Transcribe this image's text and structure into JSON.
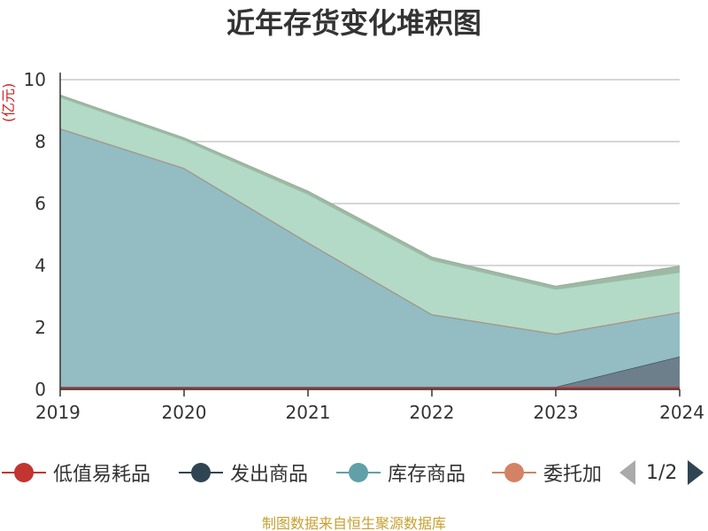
{
  "title": "近年存货变化堆积图",
  "unit_label": "(亿元)",
  "source": "制图数据来自恒生聚源数据库",
  "legend": {
    "items": [
      {
        "name": "低值易耗品",
        "color": "#c23531"
      },
      {
        "name": "发出商品",
        "color": "#2f4554"
      },
      {
        "name": "库存商品",
        "color": "#61a0a8"
      },
      {
        "name": "委托加",
        "color": "#d48265"
      }
    ],
    "pager": "1/2"
  },
  "chart_data": {
    "type": "area",
    "stacked": true,
    "title": "近年存货变化堆积图",
    "ylabel": "(亿元)",
    "ylim": [
      0,
      10
    ],
    "yticks": [
      0,
      2,
      4,
      6,
      8,
      10
    ],
    "grid": true,
    "legend_position": "bottom",
    "x": [
      "2019",
      "2020",
      "2021",
      "2022",
      "2023",
      "2024"
    ],
    "series": [
      {
        "name": "低值易耗品",
        "color": "#c23531",
        "fill": "#c23531",
        "values": [
          0.08,
          0.08,
          0.08,
          0.08,
          0.08,
          0.08
        ]
      },
      {
        "name": "发出商品",
        "color": "#2f4554",
        "fill": "#6e7f8c",
        "values": [
          0.0,
          0.0,
          0.0,
          0.0,
          0.0,
          0.98
        ]
      },
      {
        "name": "库存商品",
        "color": "#61a0a8",
        "fill": "#93bcc3",
        "values": [
          8.33,
          7.05,
          4.65,
          2.33,
          1.7,
          1.42
        ]
      },
      {
        "name": "委托加",
        "color": "#d48265",
        "fill": "#e3b09c",
        "values": [
          0.02,
          0.02,
          0.02,
          0.02,
          0.02,
          0.02
        ]
      },
      {
        "name": "",
        "color": "#91c7ae",
        "fill": "#b3dac6",
        "values": [
          1.0,
          0.9,
          1.55,
          1.74,
          1.43,
          1.28
        ]
      },
      {
        "name": "",
        "color": "#9aaf9b",
        "fill": "#9fb8a4",
        "values": [
          0.07,
          0.07,
          0.1,
          0.1,
          0.1,
          0.2
        ]
      }
    ]
  }
}
